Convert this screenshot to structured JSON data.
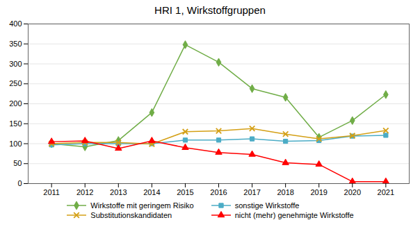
{
  "chart_data": {
    "type": "line",
    "title": "HRI 1, Wirkstoffgruppen",
    "x": [
      2011,
      2012,
      2013,
      2014,
      2015,
      2016,
      2017,
      2018,
      2019,
      2020,
      2021
    ],
    "series": [
      {
        "name": "Wirkstoffe mit geringem Risiko",
        "color": "#70ad47",
        "marker": "diamond",
        "values": [
          100,
          92,
          108,
          178,
          348,
          304,
          238,
          216,
          116,
          158,
          223
        ]
      },
      {
        "name": "sonstige Wirkstoffe",
        "color": "#4bacc6",
        "marker": "square",
        "values": [
          97,
          100,
          100,
          100,
          109,
          109,
          112,
          106,
          108,
          119,
          121
        ]
      },
      {
        "name": "Substitutionskandidaten",
        "color": "#d4a017",
        "marker": "times",
        "values": [
          100,
          103,
          103,
          99,
          130,
          132,
          138,
          124,
          112,
          120,
          133
        ]
      },
      {
        "name": "nicht (mehr) genehmigte Wirkstoffe",
        "color": "#ff0000",
        "marker": "triangle",
        "values": [
          105,
          107,
          88,
          107,
          90,
          78,
          73,
          52,
          48,
          5,
          5
        ]
      }
    ],
    "xlim": [
      2010.3,
      2021.7
    ],
    "xticks": [
      2011,
      2012,
      2013,
      2014,
      2015,
      2016,
      2017,
      2018,
      2019,
      2020,
      2021
    ],
    "ylim": [
      0,
      400
    ],
    "yticks": [
      0,
      50,
      100,
      150,
      200,
      250,
      300,
      350,
      400
    ],
    "grid": true,
    "legend": "bottom"
  }
}
